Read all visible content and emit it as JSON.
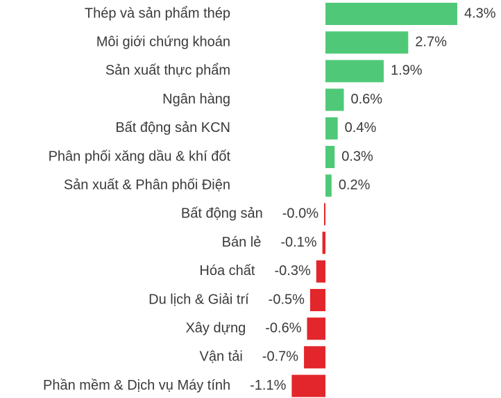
{
  "chart_data": {
    "type": "barh",
    "categories": [
      "Thép và sản phẩm thép",
      "Môi giới chứng khoán",
      "Sản xuất thực phẩm",
      "Ngân hàng",
      "Bất động sản KCN",
      "Phân phối xăng dầu & khí đốt",
      "Sản xuất & Phân phối Điện",
      "Bất động sản",
      "Bán lẻ",
      "Hóa chất",
      "Du lịch & Giải trí",
      "Xây dựng",
      "Vận tải",
      "Phần mềm & Dịch vụ Máy tính"
    ],
    "values": [
      4.3,
      2.7,
      1.9,
      0.6,
      0.4,
      0.3,
      0.2,
      -0.04,
      -0.1,
      -0.3,
      -0.5,
      -0.6,
      -0.7,
      -1.1
    ],
    "value_labels": [
      "4.3%",
      "2.7%",
      "1.9%",
      "0.6%",
      "0.4%",
      "0.3%",
      "0.2%",
      "-0.0%",
      "-0.1%",
      "-0.3%",
      "-0.5%",
      "-0.6%",
      "-0.7%",
      "-1.1%"
    ],
    "color_positive": "#4fc978",
    "color_negative": "#e3262b"
  }
}
